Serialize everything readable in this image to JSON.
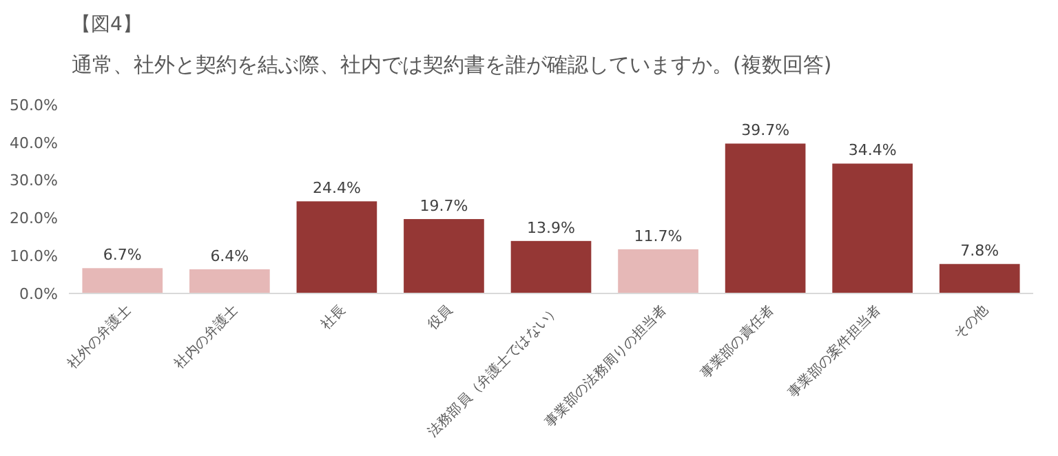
{
  "chart_data": {
    "type": "bar",
    "title": "【図4】",
    "subtitle": "通常、社外と契約を結ぶ際、社内では契約書を誰が確認していますか。(複数回答)",
    "categories": [
      "社外の弁護士",
      "社内の弁護士",
      "社長",
      "役員",
      "法務部員（弁護士ではない）",
      "事業部の法務周りの担当者",
      "事業部の責任者",
      "事業部の案件担当者",
      "その他"
    ],
    "values": [
      6.7,
      6.4,
      24.4,
      19.7,
      13.9,
      11.7,
      39.7,
      34.4,
      7.8
    ],
    "value_labels": [
      "6.7%",
      "6.4%",
      "24.4%",
      "19.7%",
      "13.9%",
      "11.7%",
      "39.7%",
      "34.4%",
      "7.8%"
    ],
    "colors": [
      "#e6b8b7",
      "#e6b8b7",
      "#953735",
      "#953735",
      "#953735",
      "#e6b8b7",
      "#953735",
      "#953735",
      "#953735"
    ],
    "ylim": [
      0,
      50
    ],
    "yticks": [
      {
        "value": 0,
        "label": "0.0%"
      },
      {
        "value": 10,
        "label": "10.0%"
      },
      {
        "value": 20,
        "label": "20.0%"
      },
      {
        "value": 30,
        "label": "30.0%"
      },
      {
        "value": 40,
        "label": "40.0%"
      },
      {
        "value": 50,
        "label": "50.0%"
      }
    ],
    "grid": false
  }
}
